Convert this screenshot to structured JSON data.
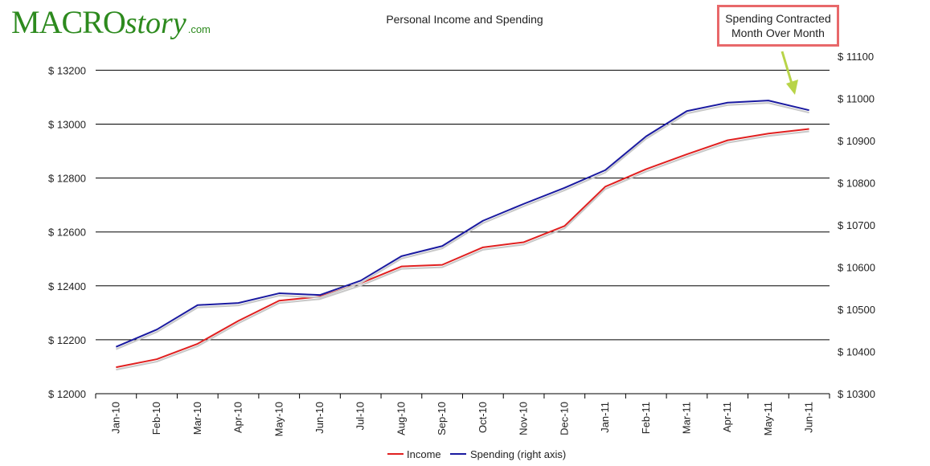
{
  "logo": {
    "big": "MACRO",
    "script": "story",
    "small": ".com"
  },
  "annotation": {
    "line1": "Spending Contracted",
    "line2": "Month Over Month"
  },
  "chart_data": {
    "type": "line",
    "title": "Personal Income and Spending",
    "categories": [
      "Jan-10",
      "Feb-10",
      "Mar-10",
      "Apr-10",
      "May-10",
      "Jun-10",
      "Jul-10",
      "Aug-10",
      "Sep-10",
      "Oct-10",
      "Nov-10",
      "Dec-10",
      "Jan-11",
      "Feb-11",
      "Mar-11",
      "Apr-11",
      "May-11",
      "Jun-11"
    ],
    "left_axis": {
      "ylim": [
        12000,
        13300
      ],
      "ticks": [
        12000,
        12200,
        12400,
        12600,
        12800,
        13000,
        13200
      ],
      "prefix": "$ "
    },
    "right_axis": {
      "ylim": [
        10300,
        11100
      ],
      "ticks": [
        10300,
        10400,
        10500,
        10600,
        10700,
        10800,
        10900,
        11000,
        11100
      ],
      "prefix": "$ "
    },
    "series": [
      {
        "name": "Income",
        "axis": "left",
        "color": "#e02020",
        "values": [
          12098,
          12128,
          12185,
          12270,
          12345,
          12360,
          12410,
          12472,
          12478,
          12543,
          12562,
          12622,
          12768,
          12833,
          12888,
          12940,
          12965,
          12982
        ]
      },
      {
        "name": "Spending (right axis)",
        "axis": "right",
        "color": "#1a1aa0",
        "values": [
          10411,
          10452,
          10510,
          10515,
          10538,
          10534,
          10568,
          10626,
          10650,
          10710,
          10750,
          10788,
          10830,
          10910,
          10970,
          10990,
          10995,
          10972
        ]
      }
    ],
    "grid": true,
    "legend_position": "bottom-center"
  }
}
